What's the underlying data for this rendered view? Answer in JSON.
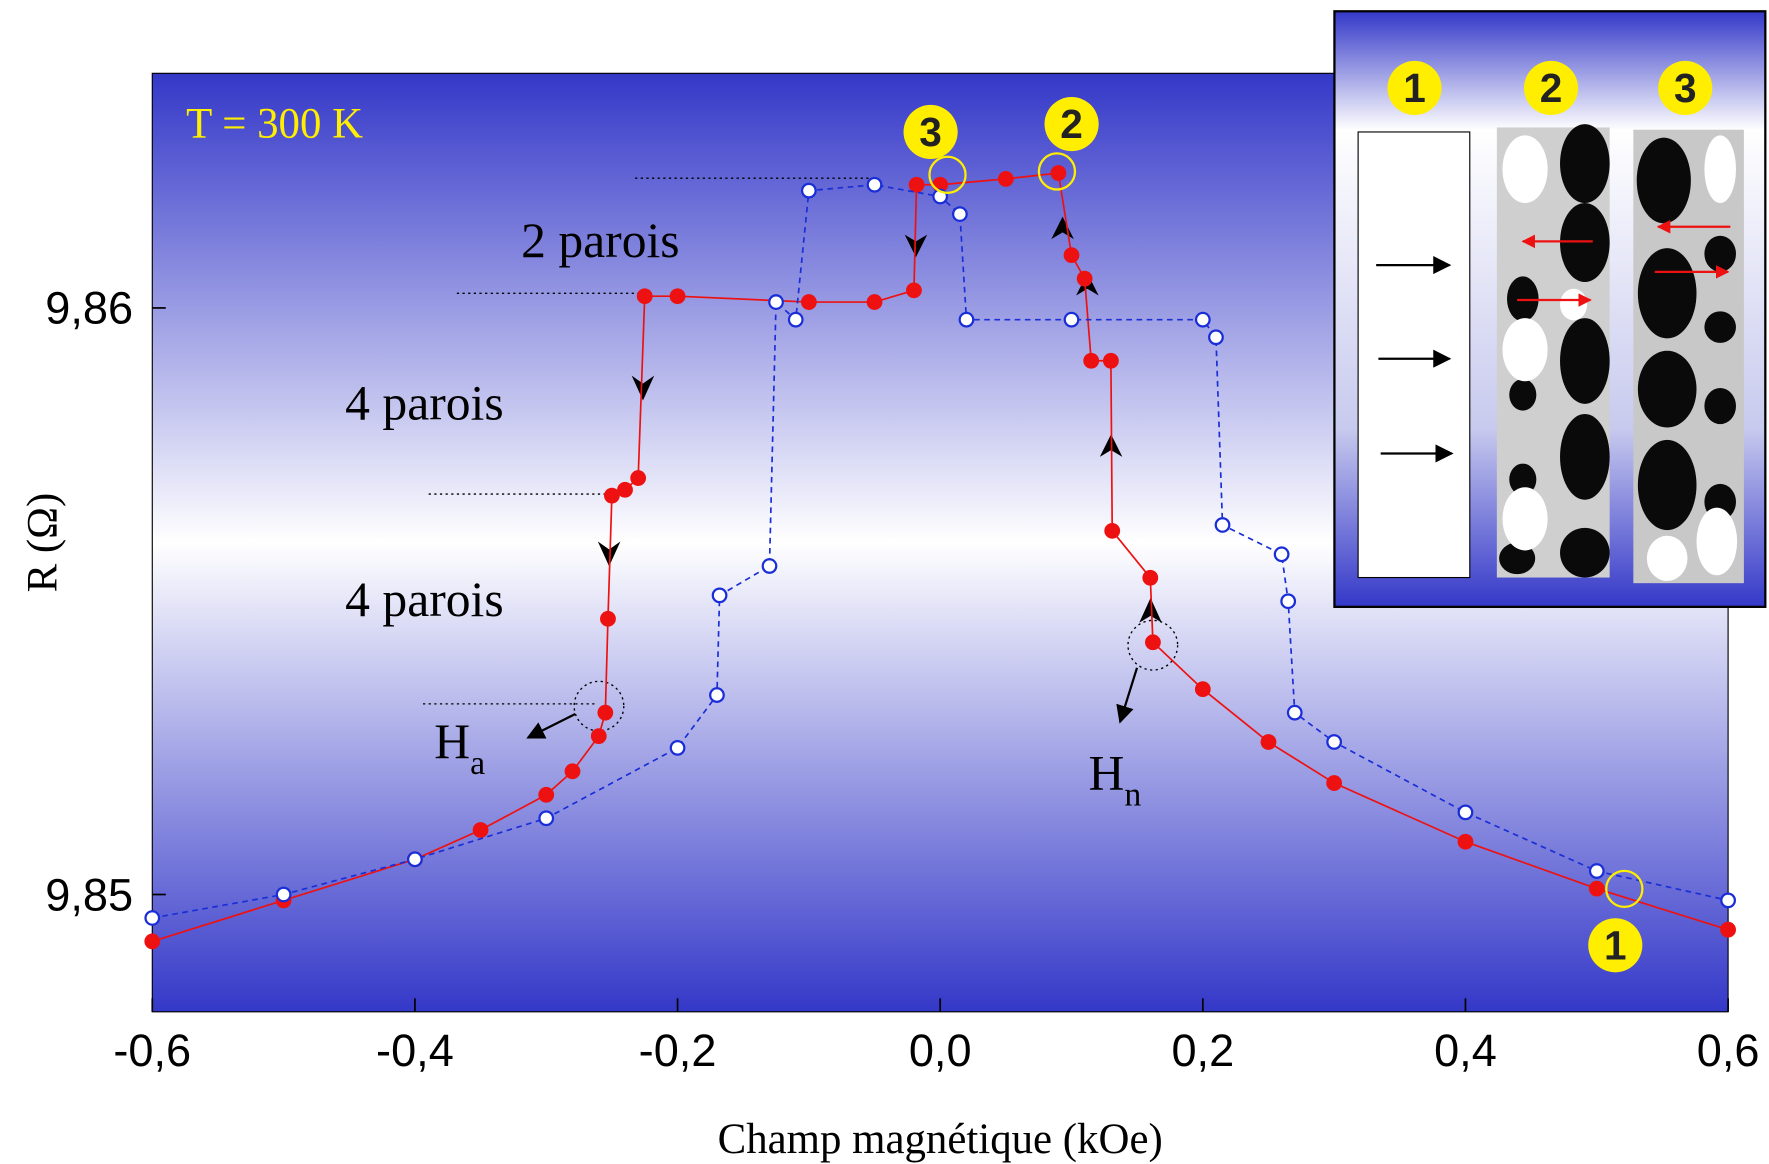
{
  "chart_data": {
    "type": "scatter",
    "xlabel": "Champ magnétique (kOe)",
    "ylabel": "R (Ω)",
    "xlim": [
      -0.6,
      0.6
    ],
    "ylim": [
      9.848,
      9.864
    ],
    "xticks": [
      {
        "value": -0.6,
        "label": "-0,6"
      },
      {
        "value": -0.4,
        "label": "-0,4"
      },
      {
        "value": -0.2,
        "label": "-0,2"
      },
      {
        "value": 0.0,
        "label": "0,0"
      },
      {
        "value": 0.2,
        "label": "0,2"
      },
      {
        "value": 0.4,
        "label": "0,4"
      },
      {
        "value": 0.6,
        "label": "0,6"
      }
    ],
    "yticks": [
      {
        "value": 9.85,
        "label": "9,85"
      },
      {
        "value": 9.86,
        "label": "9,86"
      }
    ],
    "series": [
      {
        "color": "#ee1111",
        "fill": true,
        "x": [
          -0.6,
          -0.5,
          -0.4,
          -0.35,
          -0.3,
          -0.28,
          -0.26,
          -0.255,
          -0.253,
          -0.25,
          -0.24,
          -0.23,
          -0.225,
          -0.2,
          -0.1,
          -0.05,
          -0.02,
          -0.018,
          0.0,
          0.05,
          0.09,
          0.1,
          0.11,
          0.115,
          0.13,
          0.131,
          0.16,
          0.162,
          0.2,
          0.25,
          0.3,
          0.4,
          0.5,
          0.6
        ],
        "values": [
          9.8492,
          9.8499,
          9.8506,
          9.8511,
          9.8517,
          9.8521,
          9.8527,
          9.8531,
          9.8547,
          9.8568,
          9.8569,
          9.8571,
          9.8602,
          9.8602,
          9.8601,
          9.8601,
          9.8603,
          9.8621,
          9.8621,
          9.8622,
          9.8623,
          9.8609,
          9.8605,
          9.8591,
          9.8591,
          9.8562,
          9.8554,
          9.8543,
          9.8535,
          9.8526,
          9.8519,
          9.8509,
          9.8501,
          9.8494
        ]
      },
      {
        "color": "#1a2ed8",
        "fill": false,
        "x": [
          -0.6,
          -0.5,
          -0.4,
          -0.3,
          -0.2,
          -0.17,
          -0.168,
          -0.13,
          -0.125,
          -0.11,
          -0.1,
          -0.05,
          0.0,
          0.015,
          0.02,
          0.1,
          0.2,
          0.21,
          0.215,
          0.26,
          0.265,
          0.27,
          0.3,
          0.4,
          0.5,
          0.6
        ],
        "values": [
          9.8496,
          9.85,
          9.8506,
          9.8513,
          9.8525,
          9.8534,
          9.8551,
          9.8556,
          9.8601,
          9.8598,
          9.862,
          9.8621,
          9.8619,
          9.8616,
          9.8598,
          9.8598,
          9.8598,
          9.8595,
          9.8563,
          9.8558,
          9.855,
          9.8531,
          9.8526,
          9.8514,
          9.8504,
          9.8499
        ]
      }
    ],
    "annotations": [
      {
        "text": "T = 300 K"
      },
      {
        "text": "2 parois"
      },
      {
        "text": "4 parois"
      },
      {
        "text": "4 parois"
      },
      {
        "text": "H",
        "sub": "a"
      },
      {
        "text": "H",
        "sub": "n"
      }
    ],
    "markers": [
      "3",
      "2",
      "1"
    ],
    "inset": {
      "labels": [
        "1",
        "2",
        "3"
      ]
    }
  }
}
